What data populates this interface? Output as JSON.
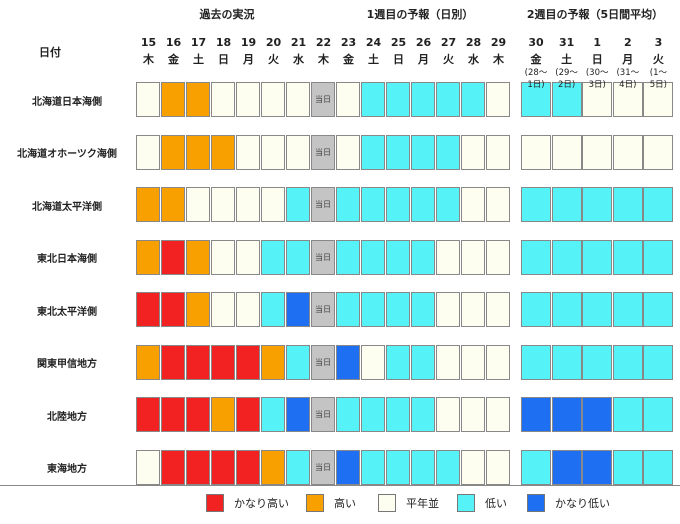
{
  "section_titles": {
    "past": "過去の実況",
    "week1": "1週目の予報（日別）",
    "week2": "2週目の予報（5日間平均）"
  },
  "row_header": "日付",
  "today_label": "当日",
  "daily_columns": [
    {
      "day": "15",
      "weekday": "木"
    },
    {
      "day": "16",
      "weekday": "金"
    },
    {
      "day": "17",
      "weekday": "土"
    },
    {
      "day": "18",
      "weekday": "日"
    },
    {
      "day": "19",
      "weekday": "月"
    },
    {
      "day": "20",
      "weekday": "火"
    },
    {
      "day": "21",
      "weekday": "水"
    },
    {
      "day": "22",
      "weekday": "木"
    },
    {
      "day": "23",
      "weekday": "金"
    },
    {
      "day": "24",
      "weekday": "土"
    },
    {
      "day": "25",
      "weekday": "日"
    },
    {
      "day": "26",
      "weekday": "月"
    },
    {
      "day": "27",
      "weekday": "火"
    },
    {
      "day": "28",
      "weekday": "水"
    },
    {
      "day": "29",
      "weekday": "木"
    }
  ],
  "week2_columns": [
    {
      "day": "30",
      "weekday": "金",
      "range": "(28～\n1日)"
    },
    {
      "day": "31",
      "weekday": "土",
      "range": "(29～\n2日)"
    },
    {
      "day": "1",
      "weekday": "日",
      "range": "(30～\n3日)"
    },
    {
      "day": "2",
      "weekday": "月",
      "range": "(31～\n4日)"
    },
    {
      "day": "3",
      "weekday": "火",
      "range": "(1～\n5日)"
    }
  ],
  "categories": {
    "VH": {
      "label": "かなり高い",
      "color": "#f22222"
    },
    "H": {
      "label": "高い",
      "color": "#f7a000"
    },
    "N": {
      "label": "平年並",
      "color": "#fdfdf0"
    },
    "L": {
      "label": "低い",
      "color": "#55f3f7"
    },
    "VL": {
      "label": "かなり低い",
      "color": "#1e6ff2"
    },
    "T": {
      "label": "当日",
      "color": "#c4c4c4"
    },
    "X": {
      "label": "",
      "color": "#fdfdf0"
    }
  },
  "legend_order": [
    "VH",
    "H",
    "N",
    "L",
    "VL"
  ],
  "regions": [
    {
      "name": "北海道日本海側",
      "daily": [
        "N",
        "H",
        "H",
        "N",
        "N",
        "N",
        "N",
        "T",
        "N",
        "L",
        "L",
        "L",
        "L",
        "L",
        "N"
      ],
      "week2": [
        "L",
        "L",
        "N",
        "N",
        "N"
      ]
    },
    {
      "name": "北海道オホーツク海側",
      "daily": [
        "N",
        "H",
        "H",
        "H",
        "N",
        "N",
        "N",
        "T",
        "N",
        "L",
        "L",
        "L",
        "L",
        "N",
        "N"
      ],
      "week2": [
        "X",
        "X",
        "X",
        "X",
        "X"
      ]
    },
    {
      "name": "北海道太平洋側",
      "daily": [
        "H",
        "H",
        "N",
        "N",
        "N",
        "N",
        "L",
        "T",
        "L",
        "L",
        "L",
        "L",
        "L",
        "N",
        "N"
      ],
      "week2": [
        "L",
        "L",
        "L",
        "L",
        "L"
      ]
    },
    {
      "name": "東北日本海側",
      "daily": [
        "H",
        "VH",
        "H",
        "N",
        "N",
        "L",
        "L",
        "T",
        "L",
        "L",
        "L",
        "L",
        "N",
        "N",
        "N"
      ],
      "week2": [
        "L",
        "L",
        "L",
        "L",
        "L"
      ]
    },
    {
      "name": "東北太平洋側",
      "daily": [
        "VH",
        "VH",
        "H",
        "N",
        "N",
        "L",
        "VL",
        "T",
        "L",
        "L",
        "L",
        "L",
        "N",
        "N",
        "N"
      ],
      "week2": [
        "L",
        "L",
        "L",
        "L",
        "L"
      ]
    },
    {
      "name": "関東甲信地方",
      "daily": [
        "H",
        "VH",
        "VH",
        "VH",
        "VH",
        "H",
        "L",
        "T",
        "VL",
        "N",
        "L",
        "L",
        "N",
        "N",
        "N"
      ],
      "week2": [
        "L",
        "L",
        "L",
        "L",
        "L"
      ]
    },
    {
      "name": "北陸地方",
      "daily": [
        "VH",
        "VH",
        "VH",
        "H",
        "VH",
        "L",
        "VL",
        "T",
        "L",
        "L",
        "L",
        "L",
        "N",
        "N",
        "N"
      ],
      "week2": [
        "VL",
        "VL",
        "VL",
        "L",
        "L"
      ]
    },
    {
      "name": "東海地方",
      "daily": [
        "N",
        "VH",
        "VH",
        "VH",
        "VH",
        "H",
        "L",
        "T",
        "VL",
        "L",
        "L",
        "L",
        "L",
        "N",
        "N"
      ],
      "week2": [
        "L",
        "VL",
        "VL",
        "L",
        "L"
      ]
    }
  ]
}
